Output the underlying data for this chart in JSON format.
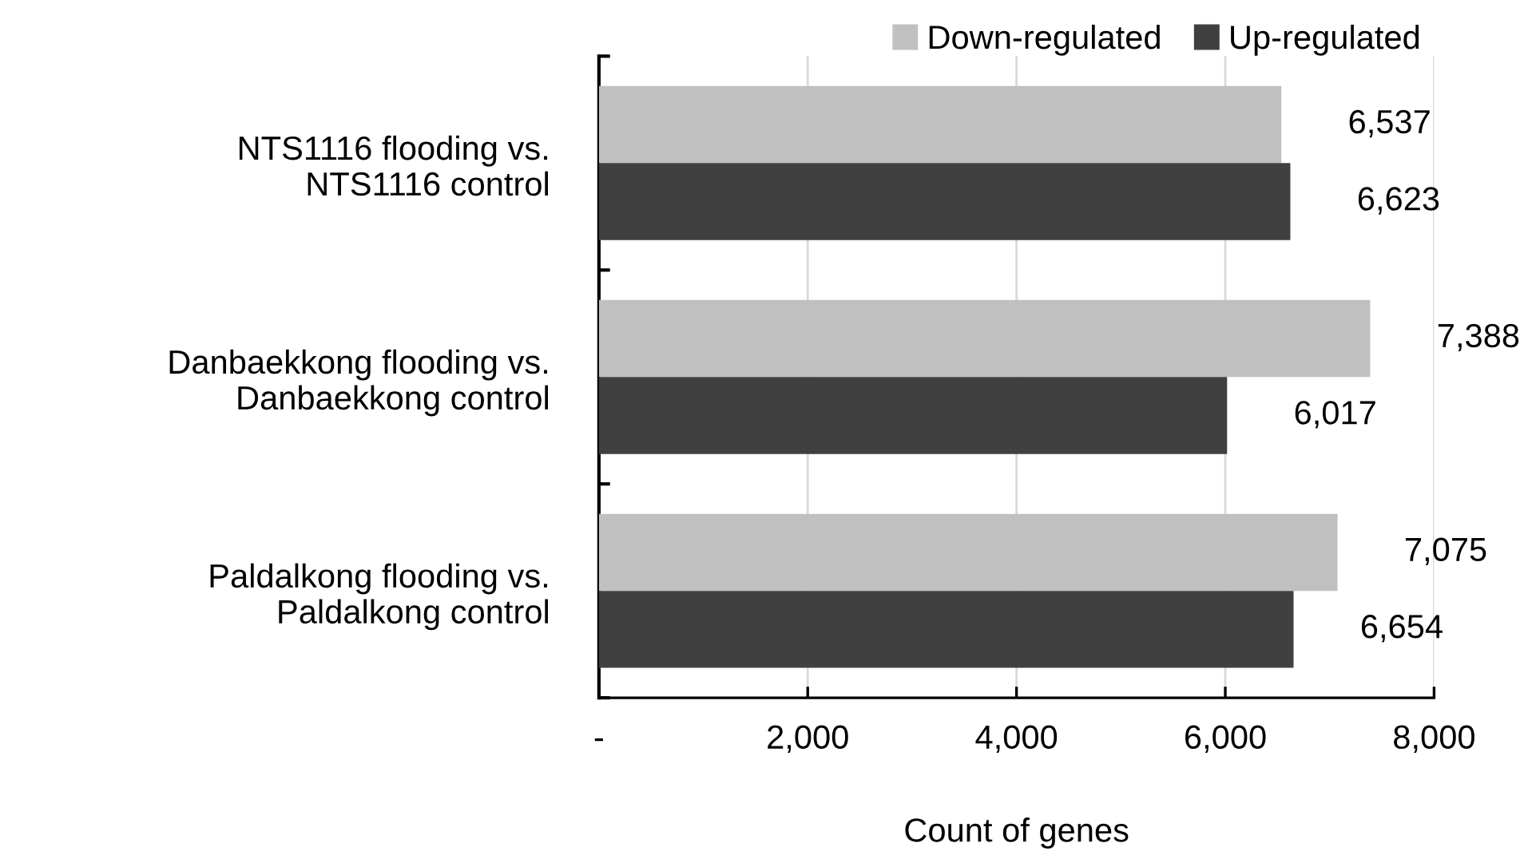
{
  "chart_data": {
    "type": "bar",
    "orientation": "horizontal",
    "xlabel": "Count of genes",
    "categories": [
      "NTS1116 flooding vs.\nNTS1116 control",
      "Danbaekkong flooding vs.\nDanbaekkong control",
      "Paldalkong flooding vs.\nPaldalkong control"
    ],
    "series": [
      {
        "name": "Down-regulated",
        "color": "#c0c0c0",
        "values": [
          6537,
          7388,
          7075
        ],
        "value_labels": [
          "6,537",
          "7,388",
          "7,075"
        ]
      },
      {
        "name": "Up-regulated",
        "color": "#404040",
        "values": [
          6623,
          6017,
          6654
        ],
        "value_labels": [
          "6,623",
          "6,017",
          "6,654"
        ]
      }
    ],
    "xlim": [
      0,
      8000
    ],
    "xticks": [
      {
        "value": 0,
        "label": "-"
      },
      {
        "value": 2000,
        "label": "2,000"
      },
      {
        "value": 4000,
        "label": "4,000"
      },
      {
        "value": 6000,
        "label": "6,000"
      },
      {
        "value": 8000,
        "label": "8,000"
      }
    ],
    "grid": "x",
    "legend": "top right"
  }
}
